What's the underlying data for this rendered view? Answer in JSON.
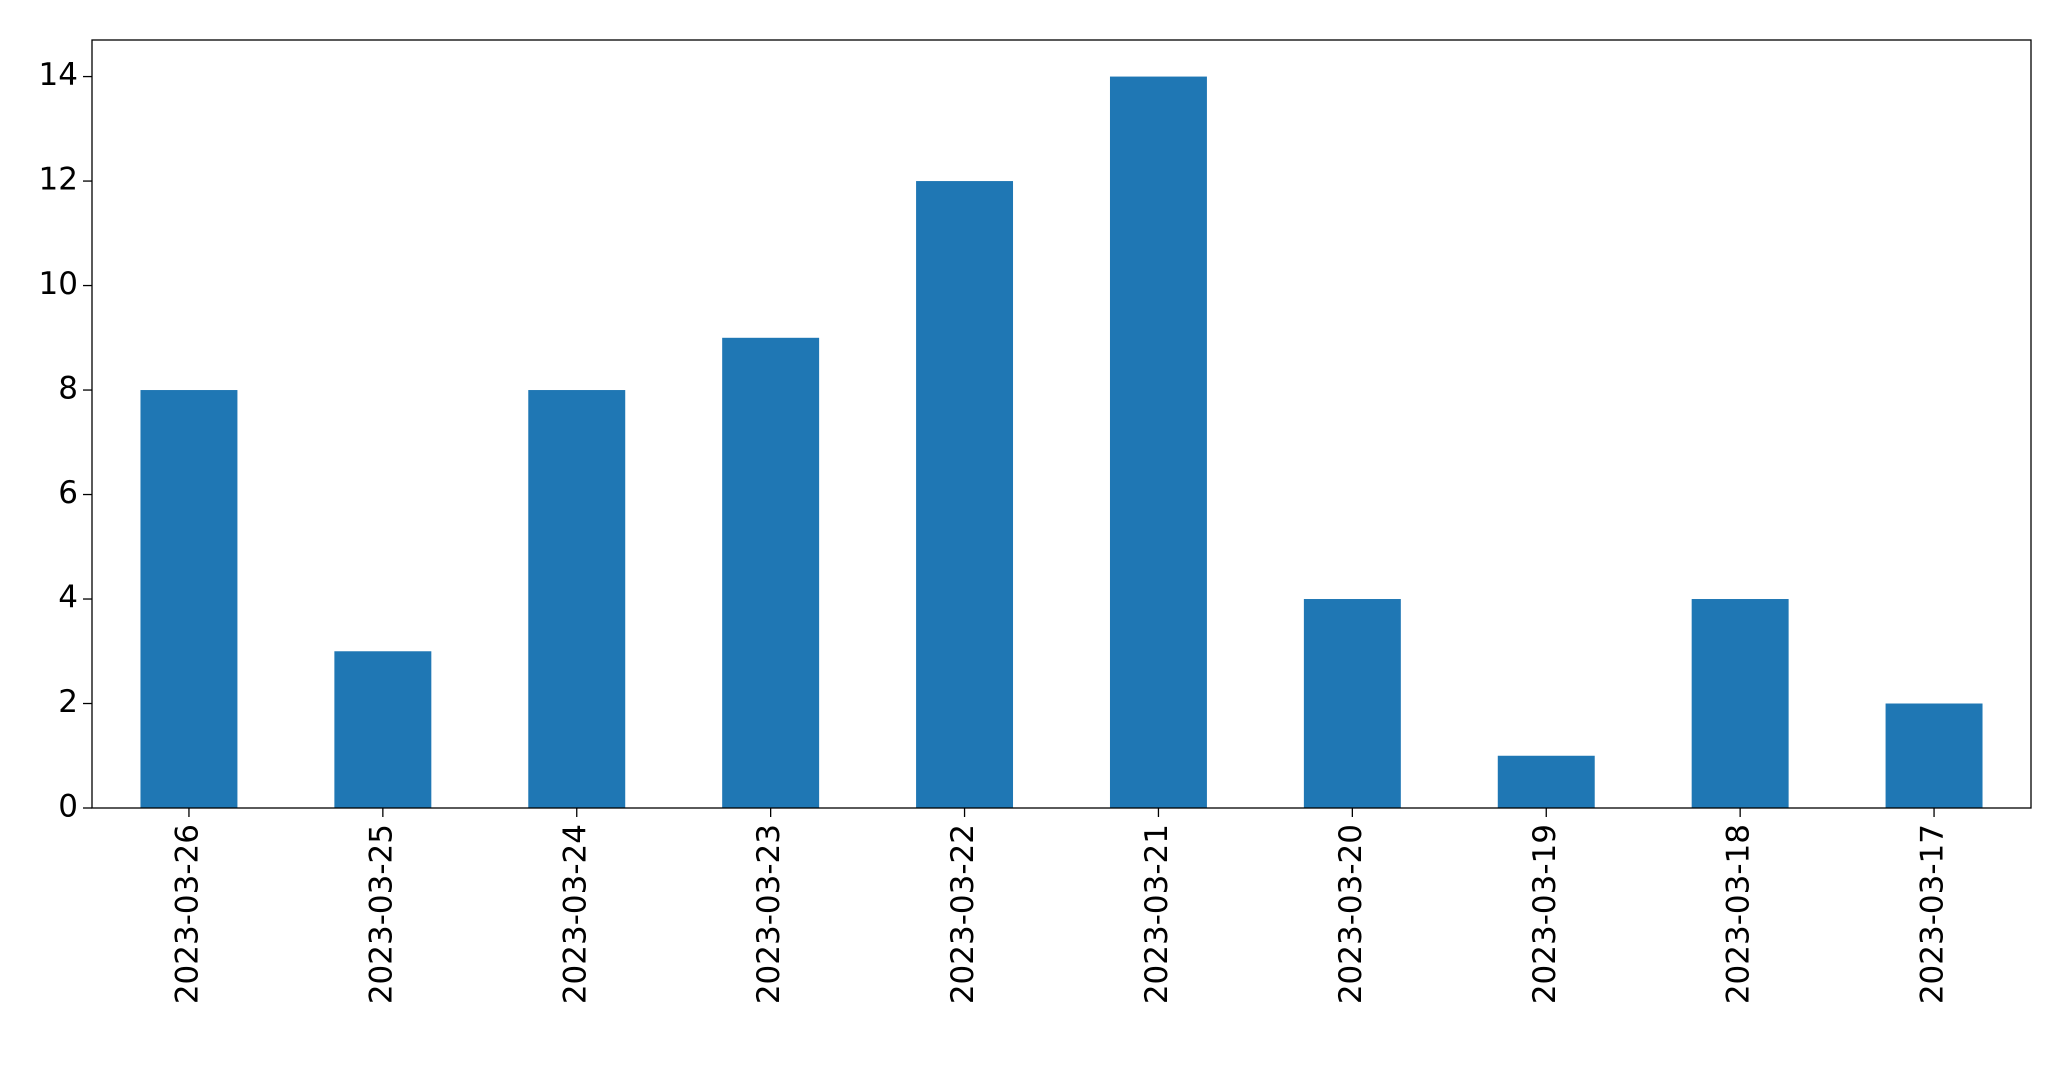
{
  "chart_data": {
    "type": "bar",
    "categories": [
      "2023-03-26",
      "2023-03-25",
      "2023-03-24",
      "2023-03-23",
      "2023-03-22",
      "2023-03-21",
      "2023-03-20",
      "2023-03-19",
      "2023-03-18",
      "2023-03-17"
    ],
    "values": [
      8,
      3,
      8,
      9,
      12,
      14,
      4,
      1,
      4,
      2
    ],
    "color": "#1f77b4",
    "ylim": [
      0,
      14.7
    ],
    "yticks": [
      0,
      2,
      4,
      6,
      8,
      10,
      12,
      14
    ],
    "grid": false
  }
}
